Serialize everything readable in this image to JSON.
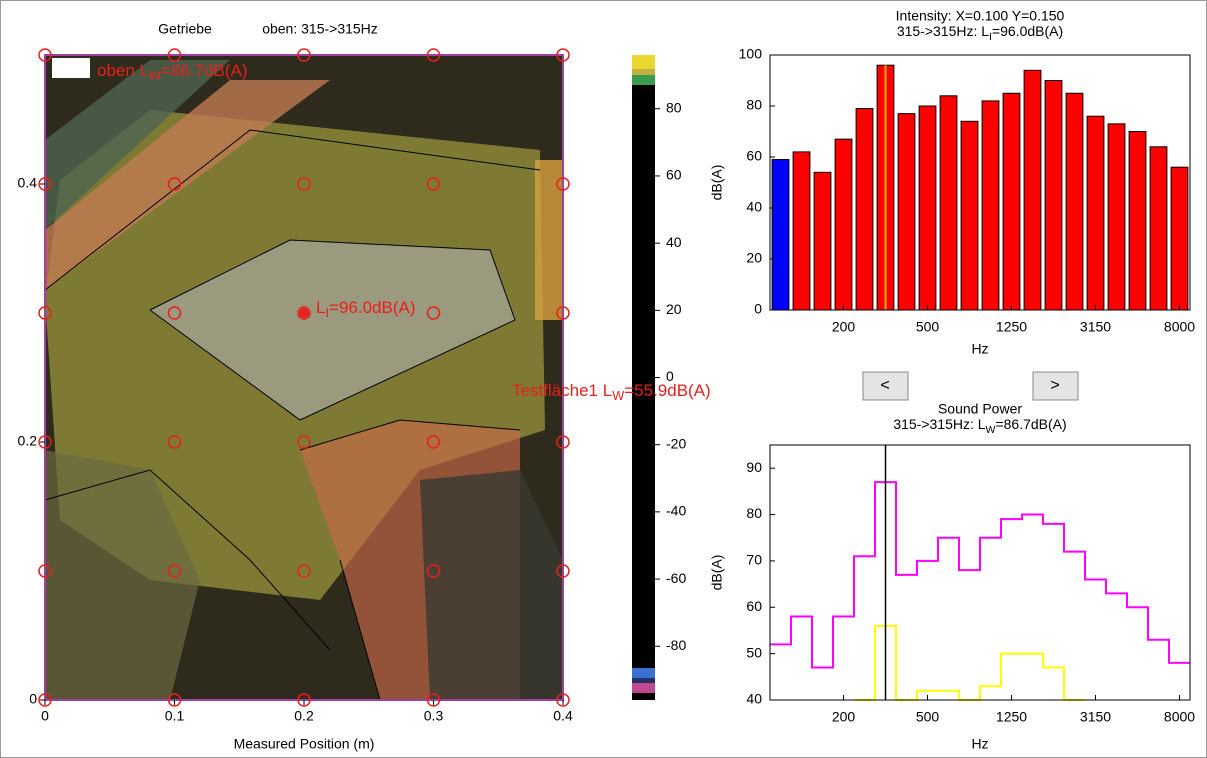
{
  "chart_data": [
    {
      "type": "image",
      "title": [
        "Getriebe",
        "oben: 315->315Hz"
      ],
      "xlabel": "Measured Position (m)",
      "xlim": [
        0,
        0.4
      ],
      "ylim": [
        0,
        0.5
      ],
      "xticks": [
        0,
        0.1,
        0.2,
        0.3,
        0.4
      ],
      "yticks": [
        0,
        0.2,
        0.4
      ],
      "points": {
        "x": [
          0,
          0,
          0,
          0,
          0,
          0,
          0.1,
          0.1,
          0.1,
          0.1,
          0.1,
          0.1,
          0.2,
          0.2,
          0.2,
          0.2,
          0.2,
          0.2,
          0.3,
          0.3,
          0.3,
          0.3,
          0.3,
          0.3,
          0.4,
          0.4,
          0.4,
          0.4,
          0.4,
          0.4
        ],
        "y": [
          0,
          0.1,
          0.2,
          0.3,
          0.4,
          0.5,
          0,
          0.1,
          0.2,
          0.3,
          0.4,
          0.5,
          0,
          0.1,
          0.2,
          0.3,
          0.4,
          0.5,
          0,
          0.1,
          0.2,
          0.3,
          0.4,
          0.5,
          0,
          0.1,
          0.2,
          0.3,
          0.4,
          0.5
        ]
      },
      "marker": {
        "x": 0.2,
        "y": 0.3
      },
      "annotations": [
        [
          "oben L",
          "W",
          "=86.7dB(A)"
        ],
        [
          "L",
          "I",
          "=96.0dB(A)"
        ],
        [
          "Testfläche1 L",
          "W",
          "=55.9dB(A)"
        ]
      ],
      "clim": [
        -96,
        96
      ],
      "cticks": [
        -80,
        -60,
        -40,
        -20,
        0,
        20,
        40,
        60,
        80
      ]
    },
    {
      "type": "bar",
      "title": [
        "Intensity: X=0.100 Y=0.150",
        [
          "315->315Hz: L",
          "I",
          "=96.0dB(A)"
        ]
      ],
      "xlabel": "Hz",
      "ylabel": "dB(A)",
      "categories": [
        null,
        null,
        null,
        "200",
        null,
        null,
        null,
        "500",
        null,
        null,
        null,
        "1250",
        null,
        null,
        null,
        "3150",
        null,
        null,
        null,
        "8000"
      ],
      "values": [
        59,
        62,
        54,
        67,
        79,
        96,
        77,
        80,
        84,
        74,
        82,
        85,
        94,
        90,
        85,
        76,
        73,
        70,
        64,
        56
      ],
      "colors": [
        "#0000ff",
        "#ff0000",
        "#ff0000",
        "#ff0000",
        "#ff0000",
        "#ff0000",
        "#ff0000",
        "#ff0000",
        "#ff0000",
        "#ff0000",
        "#ff0000",
        "#ff0000",
        "#ff0000",
        "#ff0000",
        "#ff0000",
        "#ff0000",
        "#ff0000",
        "#ff0000",
        "#ff0000",
        "#ff0000"
      ],
      "highlight": 5,
      "highlight_color": "#c8b400",
      "ylim": [
        0,
        100
      ],
      "yticks": [
        0,
        20,
        40,
        60,
        80,
        100
      ]
    },
    {
      "type": "stairs",
      "title": [
        "Sound Power",
        [
          "315->315Hz: L",
          "W",
          "=86.7dB(A)"
        ]
      ],
      "xlabel": "Hz",
      "ylabel": "dB(A)",
      "categories": [
        null,
        null,
        null,
        "200",
        null,
        null,
        null,
        "500",
        null,
        null,
        null,
        "1250",
        null,
        null,
        null,
        "3150",
        null,
        null,
        null,
        "8000"
      ],
      "series": [
        {
          "color": "#ff00ff",
          "values": [
            52,
            58,
            47,
            58,
            71,
            87,
            67,
            70,
            75,
            68,
            75,
            79,
            80,
            78,
            72,
            66,
            63,
            60,
            53,
            48
          ]
        },
        {
          "color": "#ffff00",
          "values": [
            null,
            null,
            null,
            null,
            40,
            56,
            40,
            42,
            42,
            40,
            43,
            50,
            50,
            47,
            40,
            null,
            null,
            null,
            null,
            null
          ]
        }
      ],
      "highlight": 5,
      "highlight_color": "#000000",
      "ylim": [
        40,
        95
      ],
      "yticks": [
        40,
        50,
        60,
        70,
        80,
        90
      ]
    }
  ],
  "controls": {
    "prev": "<",
    "next": ">"
  }
}
